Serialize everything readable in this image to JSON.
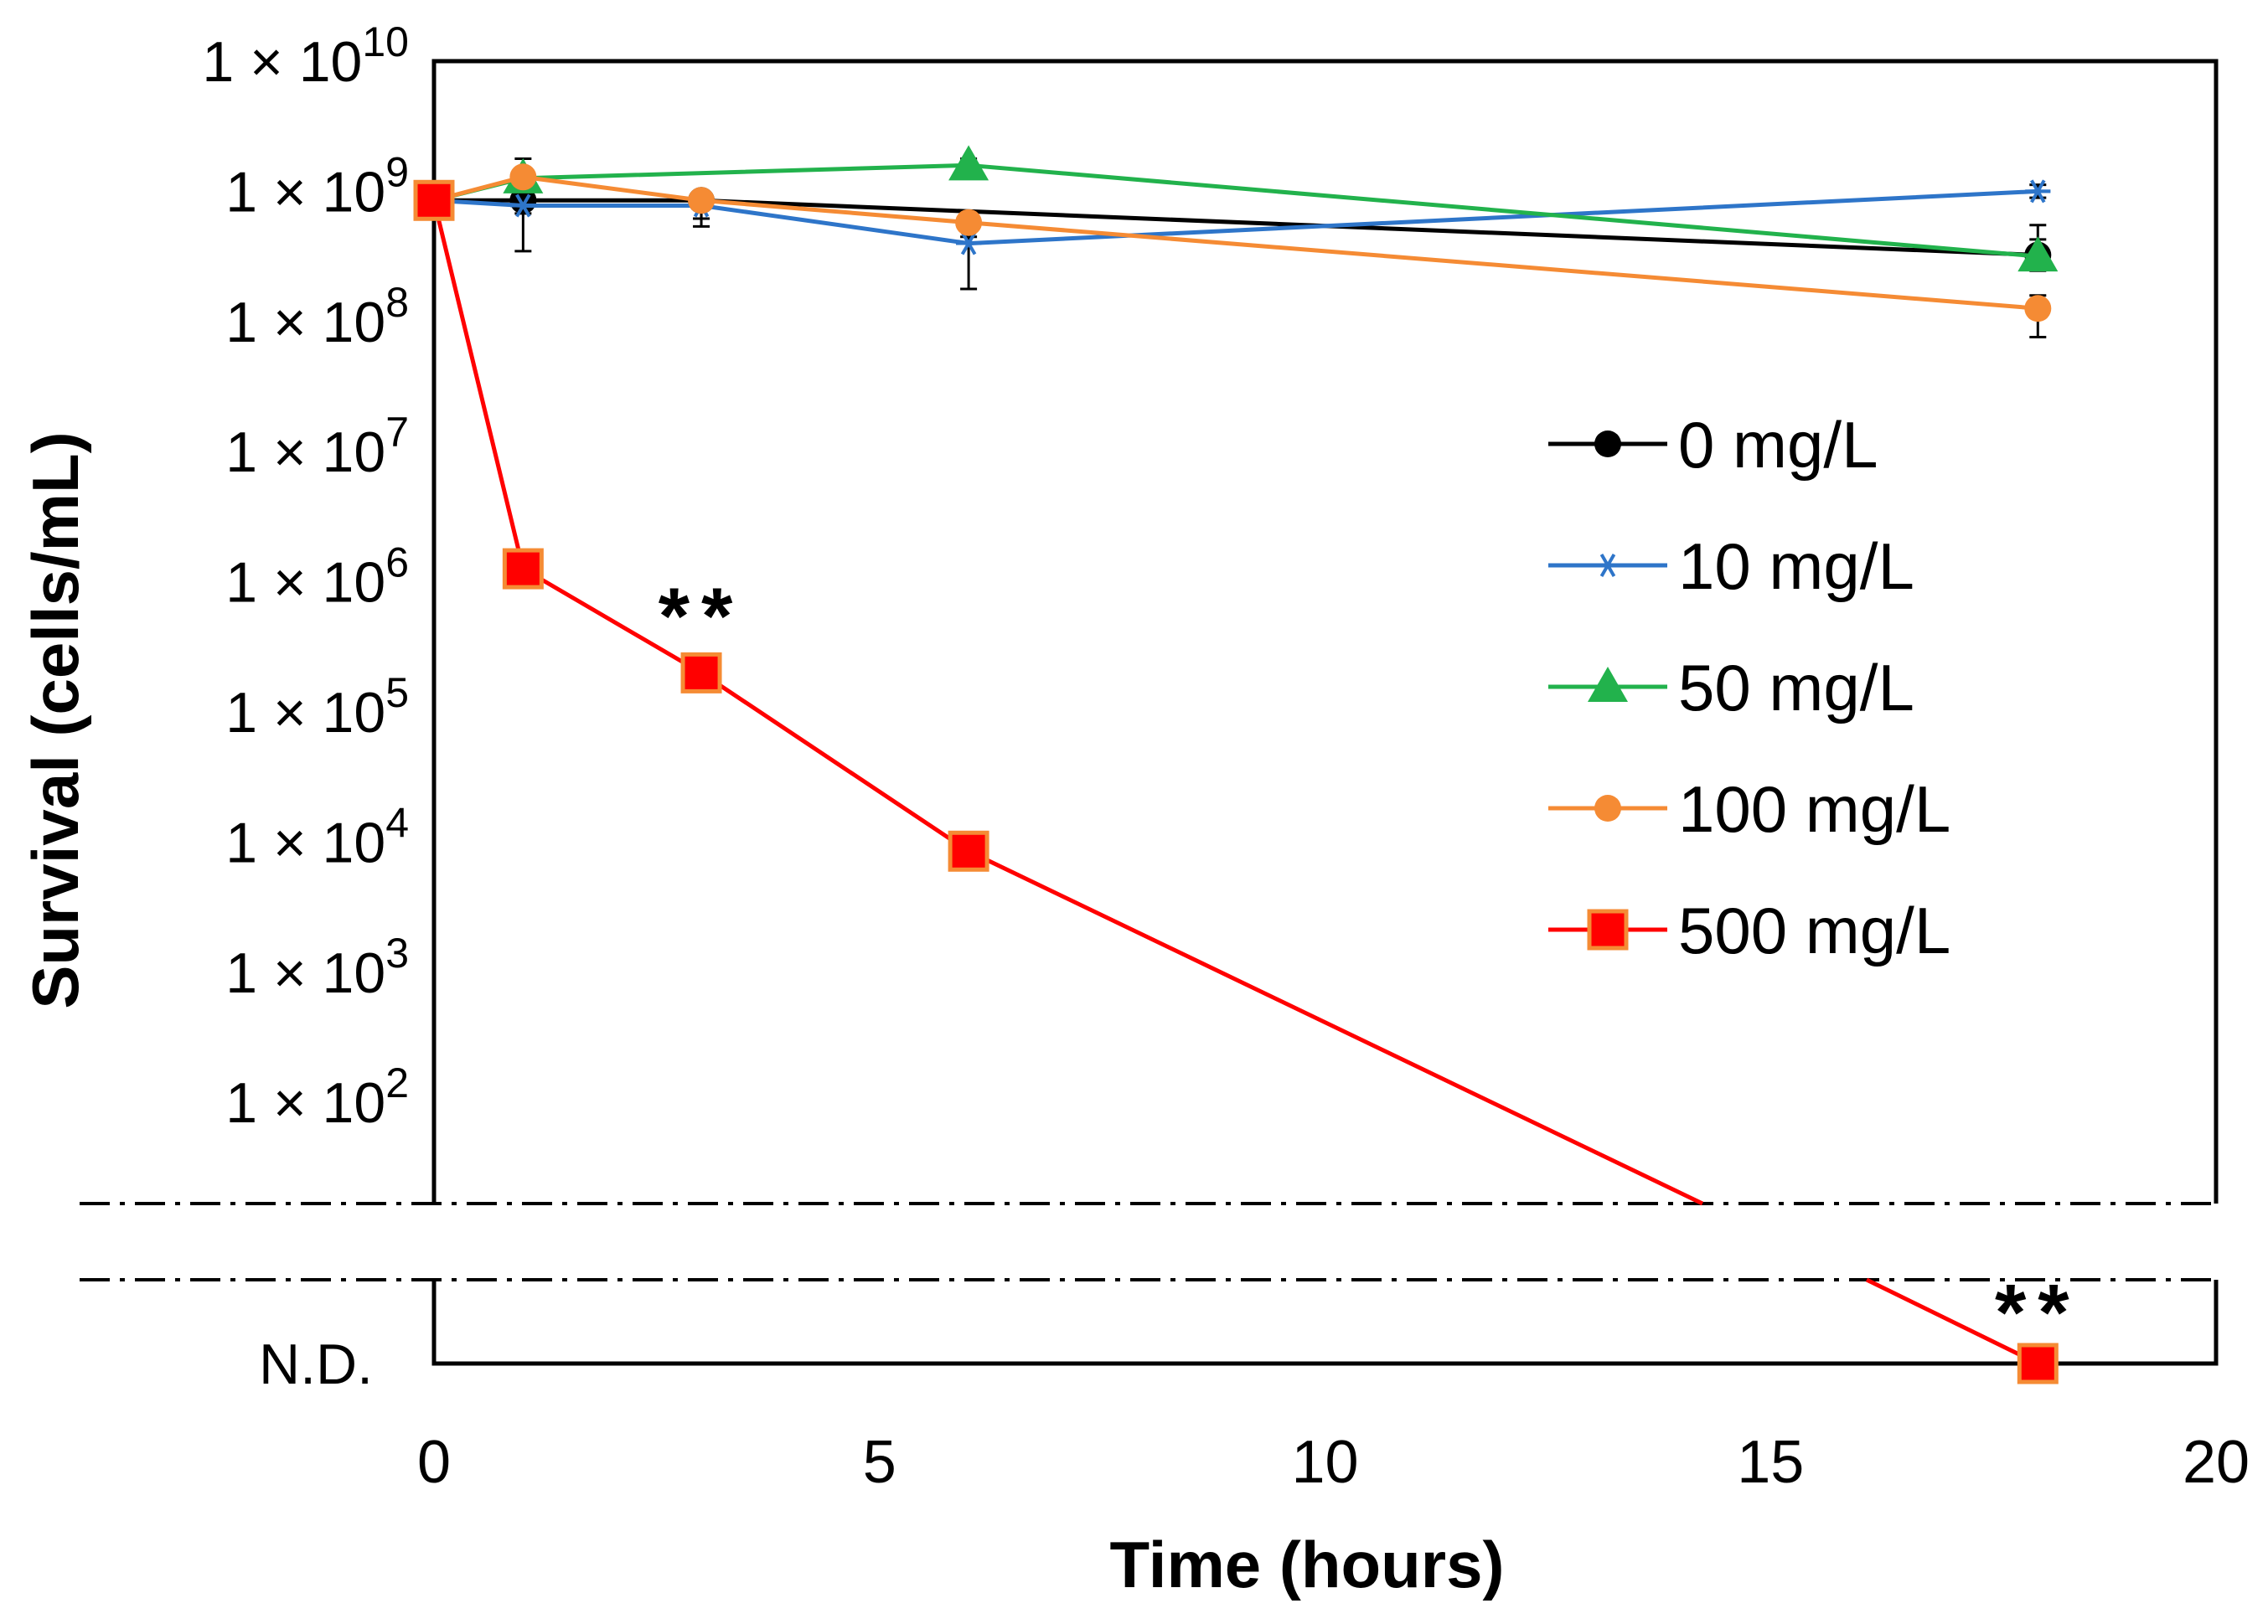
{
  "chart_data": {
    "type": "line",
    "title": "",
    "xlabel": "Time (hours)",
    "ylabel": "Survival (cells/mL)",
    "x_scale": "linear",
    "y_scale": "log10",
    "xlim": [
      0,
      20
    ],
    "ylim_exponent": [
      1,
      10
    ],
    "x_ticks": [
      "0",
      "5",
      "10",
      "15",
      "20"
    ],
    "y_ticks": [
      {
        "exp": 10,
        "base": "1 × 10",
        "sup": "10"
      },
      {
        "exp": 9,
        "base": "1 × 10",
        "sup": "9"
      },
      {
        "exp": 8,
        "base": "1 × 10",
        "sup": "8"
      },
      {
        "exp": 7,
        "base": "1 × 10",
        "sup": "7"
      },
      {
        "exp": 6,
        "base": "1 × 10",
        "sup": "6"
      },
      {
        "exp": 5,
        "base": "1 × 10",
        "sup": "5"
      },
      {
        "exp": 4,
        "base": "1 × 10",
        "sup": "4"
      },
      {
        "exp": 3,
        "base": "1 × 10",
        "sup": "3"
      },
      {
        "exp": 2,
        "base": "1 × 10",
        "sup": "2"
      }
    ],
    "nd_label": "N.D.",
    "axis_break": true,
    "legend_position": "right-center",
    "series": [
      {
        "name": "0 mg/L",
        "color": "#000000",
        "marker": "circle",
        "x": [
          0,
          1,
          3,
          18
        ],
        "log10_y": [
          8.93,
          8.93,
          8.93,
          8.51
        ],
        "err_log10_up": [
          0.05,
          0.08,
          0.06,
          0.12
        ],
        "err_log10_down": [
          0.05,
          0.1,
          0.2,
          0.12
        ]
      },
      {
        "name": "10 mg/L",
        "color": "#2E75C9",
        "marker": "star",
        "x": [
          0,
          1,
          3,
          6,
          18
        ],
        "log10_y": [
          8.93,
          8.89,
          8.89,
          8.6,
          9.0
        ],
        "err_log10_up": [
          0.05,
          0.1,
          0.08,
          0.05,
          0.05
        ],
        "err_log10_down": [
          0.05,
          0.35,
          0.1,
          0.35,
          0.05
        ]
      },
      {
        "name": "50 mg/L",
        "color": "#22B24C",
        "marker": "triangle",
        "x": [
          0,
          1,
          6,
          18
        ],
        "log10_y": [
          8.93,
          9.1,
          9.2,
          8.5
        ],
        "err_log10_up": [
          0.05,
          0.15,
          0.05,
          0.24
        ],
        "err_log10_down": [
          0.05,
          0.08,
          0.05,
          0.1
        ]
      },
      {
        "name": "100 mg/L",
        "color": "#F58B34",
        "marker": "circle",
        "x": [
          0,
          1,
          3,
          6,
          18
        ],
        "log10_y": [
          8.93,
          9.11,
          8.93,
          8.76,
          8.1
        ],
        "err_log10_up": [
          0.05,
          0.05,
          0.05,
          0.05,
          0.1
        ],
        "err_log10_down": [
          0.05,
          0.05,
          0.05,
          0.05,
          0.22
        ]
      },
      {
        "name": "500 mg/L",
        "color": "#FF0000",
        "marker": "square",
        "marker_edge": "#F58B34",
        "x": [
          0,
          1,
          3,
          6,
          18
        ],
        "log10_y": [
          8.93,
          6.1,
          5.3,
          3.93,
          null
        ],
        "nd": [
          false,
          false,
          false,
          false,
          true
        ]
      }
    ],
    "annotations": [
      {
        "text": "**",
        "x": 3,
        "series": "500 mg/L"
      },
      {
        "text": "**",
        "x": 18,
        "series": "500 mg/L"
      }
    ]
  }
}
